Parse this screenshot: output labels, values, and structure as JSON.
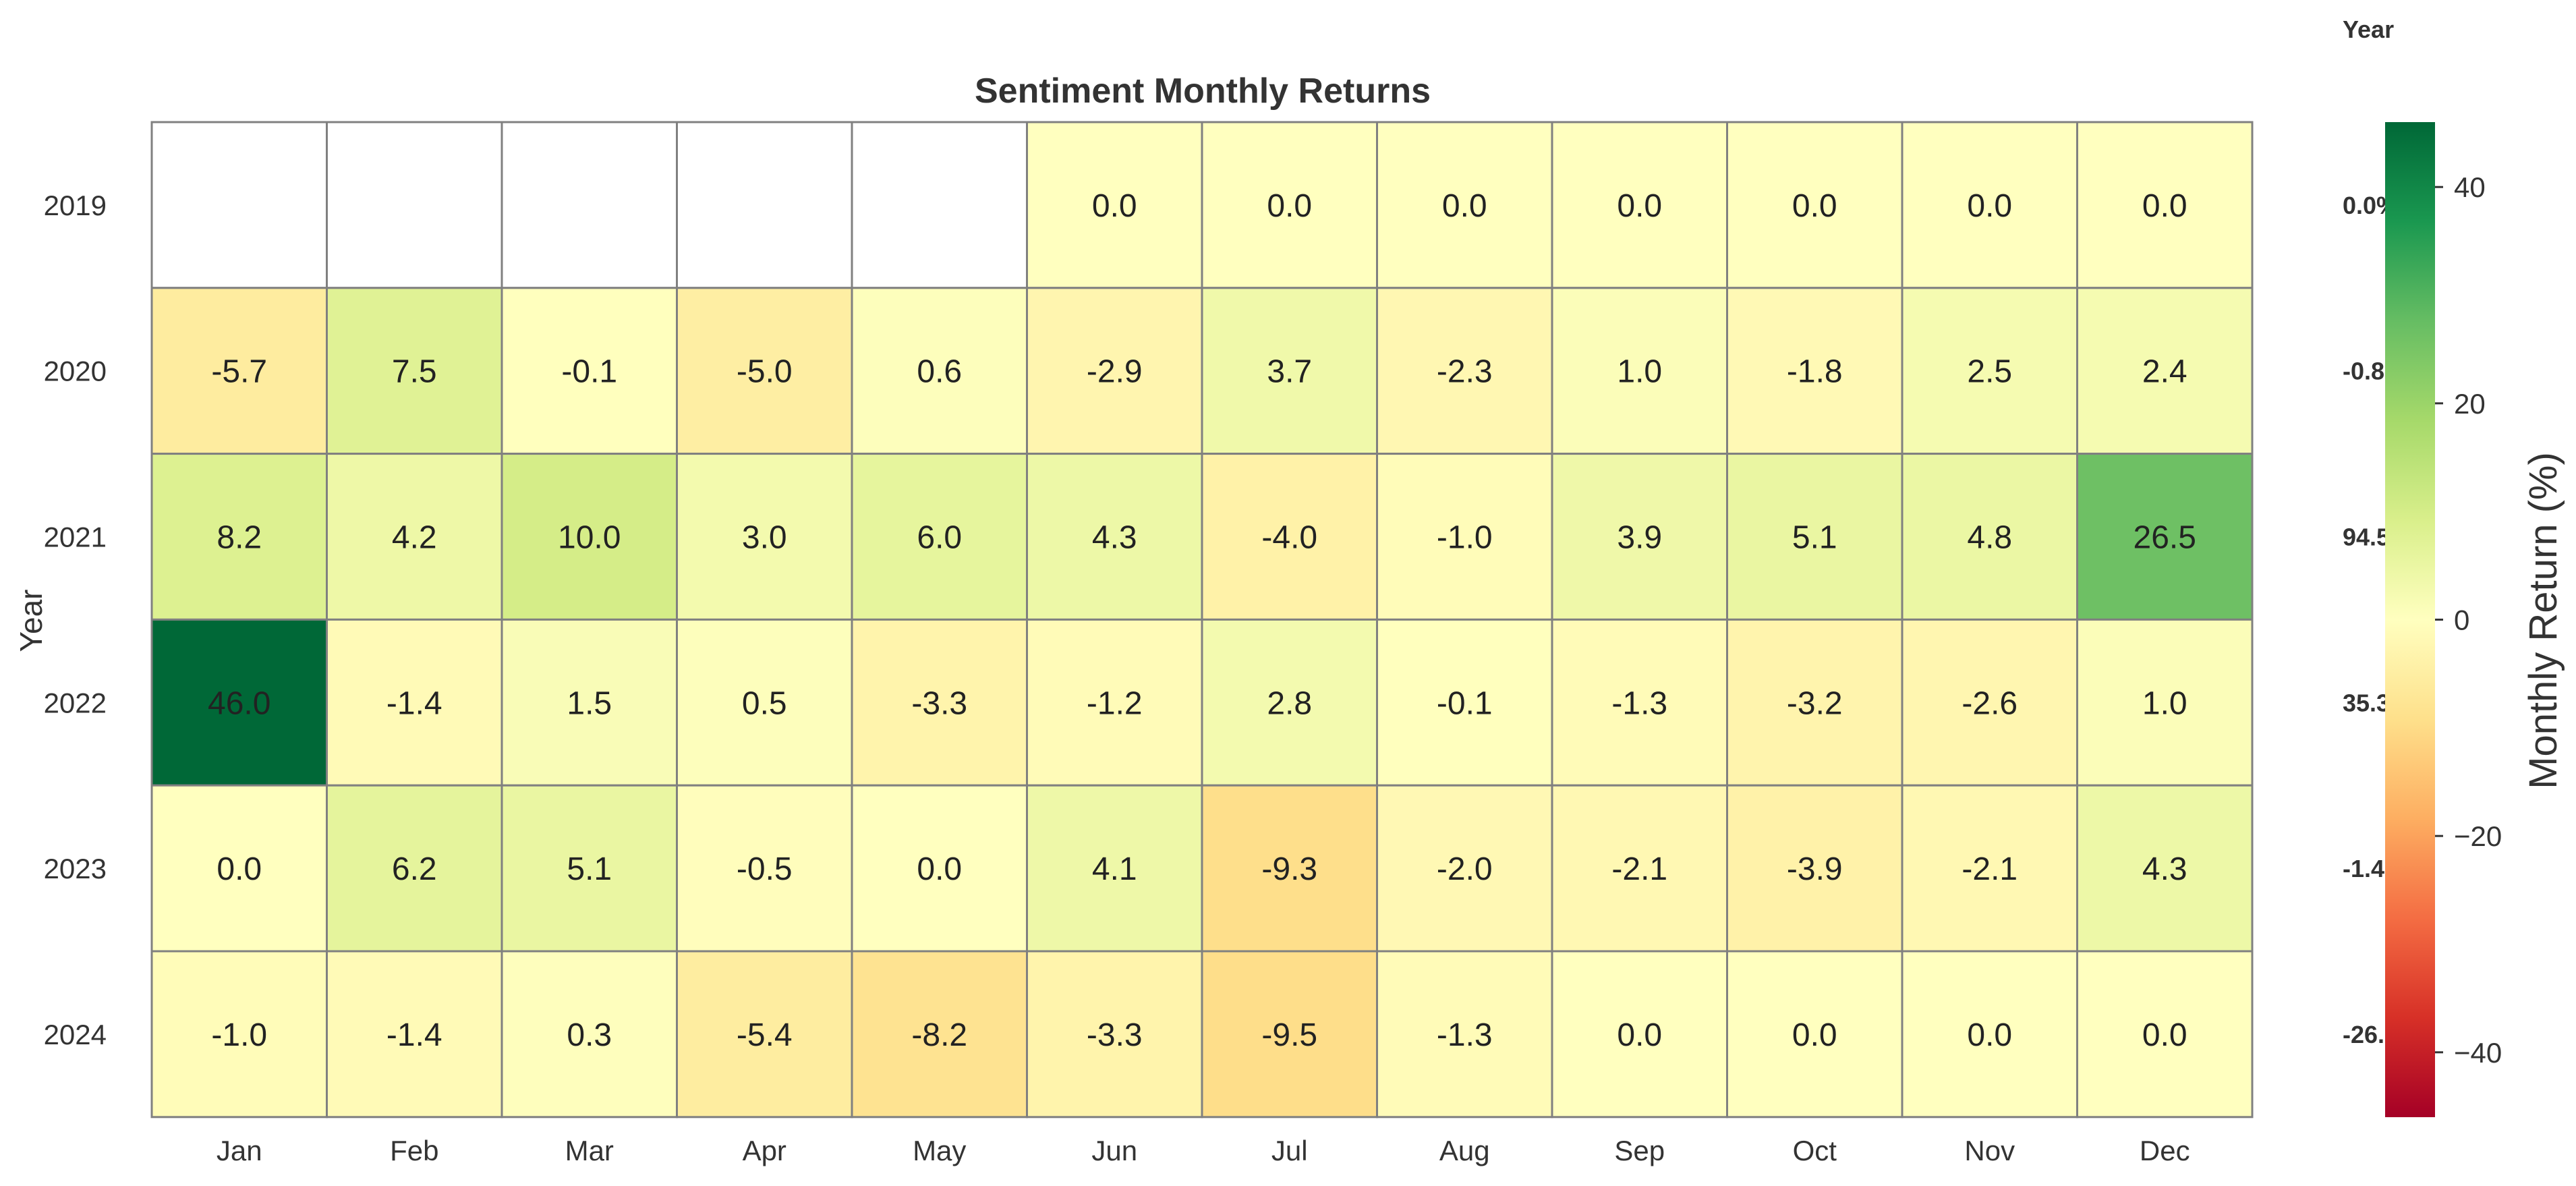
{
  "chart_data": {
    "type": "heatmap",
    "title": "Sentiment Monthly Returns",
    "xlabel": "",
    "ylabel": "Year",
    "x_categories": [
      "Jan",
      "Feb",
      "Mar",
      "Apr",
      "May",
      "Jun",
      "Jul",
      "Aug",
      "Sep",
      "Oct",
      "Nov",
      "Dec"
    ],
    "y_categories": [
      "2019",
      "2020",
      "2021",
      "2022",
      "2023",
      "2024"
    ],
    "values": [
      [
        null,
        null,
        null,
        null,
        null,
        0.0,
        0.0,
        0.0,
        0.0,
        0.0,
        0.0,
        0.0
      ],
      [
        -5.7,
        7.5,
        -0.1,
        -5.0,
        0.6,
        -2.9,
        3.7,
        -2.3,
        1.0,
        -1.8,
        2.5,
        2.4
      ],
      [
        8.2,
        4.2,
        10.0,
        3.0,
        6.0,
        4.3,
        -4.0,
        -1.0,
        3.9,
        5.1,
        4.8,
        26.5
      ],
      [
        46.0,
        -1.4,
        1.5,
        0.5,
        -3.3,
        -1.2,
        2.8,
        -0.1,
        -1.3,
        -3.2,
        -2.6,
        1.0
      ],
      [
        0.0,
        6.2,
        5.1,
        -0.5,
        0.0,
        4.1,
        -9.3,
        -2.0,
        -2.1,
        -3.9,
        -2.1,
        4.3
      ],
      [
        -1.0,
        -1.4,
        0.3,
        -5.4,
        -8.2,
        -3.3,
        -9.5,
        -1.3,
        0.0,
        0.0,
        0.0,
        0.0
      ]
    ],
    "colorbar": {
      "label": "Monthly Return (%)",
      "vmin": -46,
      "vmax": 46,
      "ticks": [
        -40,
        -20,
        0,
        20,
        40
      ],
      "tick_labels": [
        "−40",
        "−20",
        "0",
        "20",
        "40"
      ],
      "colormap": "RdYlGn"
    },
    "annual_column": {
      "header": "Year",
      "values_visible": [
        "0.0%",
        "-0.8",
        "94.5",
        "35.3",
        "-1.4",
        "-26."
      ]
    }
  }
}
